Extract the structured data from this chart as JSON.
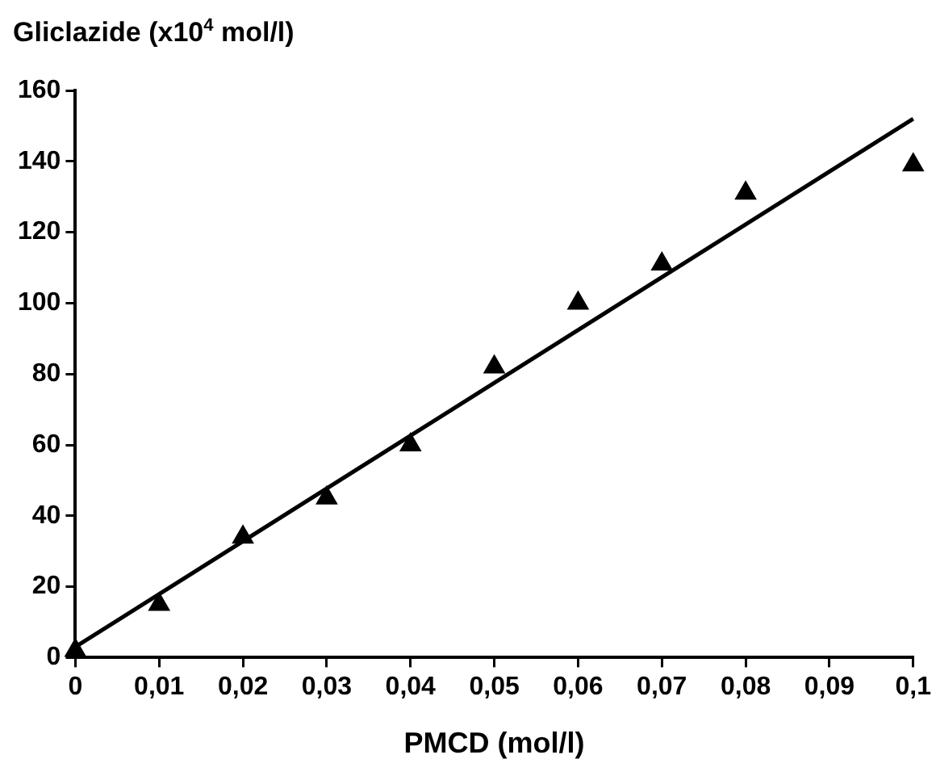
{
  "chart_data": {
    "type": "scatter",
    "ylabel": "Gliclazide (x10$^{4}$ mol/l)",
    "xlabel": "PMCD (mol/l)",
    "xlim": [
      0,
      0.1
    ],
    "ylim": [
      0,
      160
    ],
    "xticks": [
      0,
      {
        "value": 0.01,
        "label": "0,01"
      },
      {
        "value": 0.02,
        "label": "0,02"
      },
      {
        "value": 0.03,
        "label": "0,03"
      },
      {
        "value": 0.04,
        "label": "0,04"
      },
      {
        "value": 0.05,
        "label": "0,05"
      },
      {
        "value": 0.06,
        "label": "0,06"
      },
      {
        "value": 0.07,
        "label": "0,07"
      },
      {
        "value": 0.08,
        "label": "0,08"
      },
      {
        "value": 0.09,
        "label": "0,09"
      },
      {
        "value": 0.1,
        "label": "0,1"
      }
    ],
    "yticks": [
      0,
      20,
      40,
      60,
      80,
      100,
      120,
      140,
      160
    ],
    "grid": false,
    "legend": false,
    "marker": "triangle",
    "series": [
      {
        "type": "scatter",
        "color": "#000000",
        "x": [
          0,
          0.01,
          0.02,
          0.03,
          0.04,
          0.05,
          0.06,
          0.07,
          0.08,
          0.1
        ],
        "values": [
          2,
          15,
          34,
          45,
          60,
          82,
          100,
          111,
          131,
          139
        ]
      },
      {
        "type": "line",
        "color": "#000000",
        "marker": "none",
        "line_style": "solid",
        "x": [
          0,
          0.1
        ],
        "values": [
          3,
          152
        ]
      }
    ]
  }
}
